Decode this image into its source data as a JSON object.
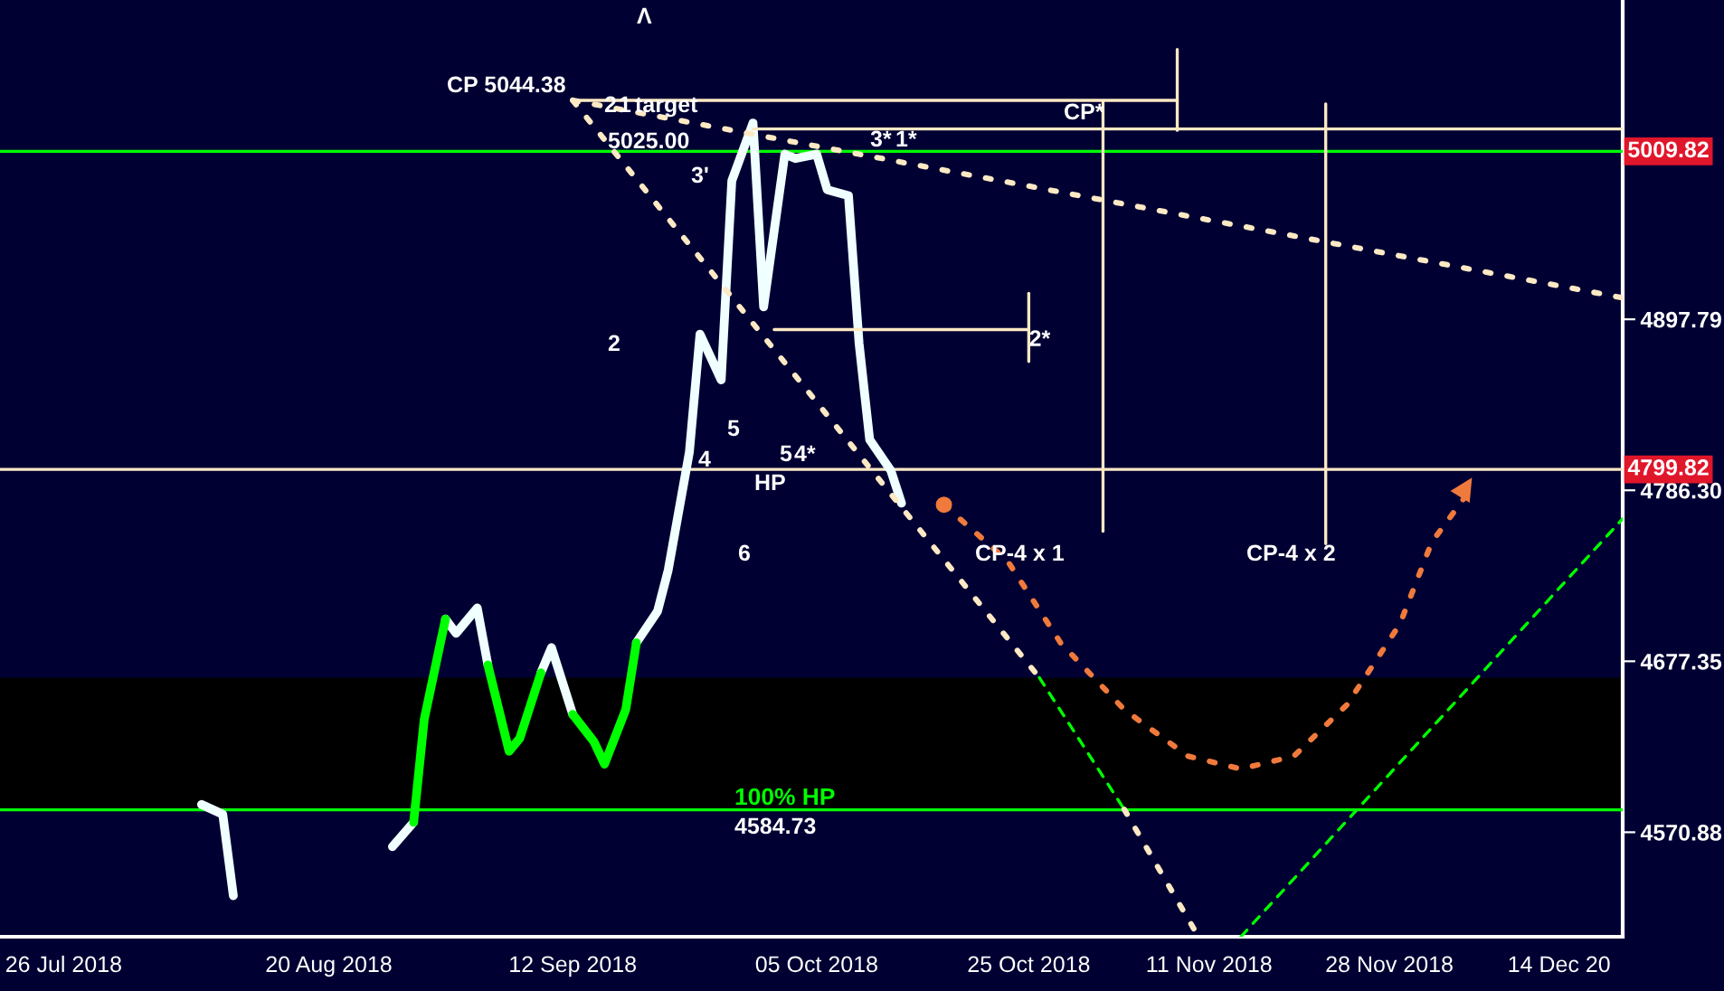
{
  "chart_data": {
    "type": "line",
    "log": "y",
    "grid": false,
    "legend": false,
    "xlim": [
      "2018-07-20",
      "2018-12-20"
    ],
    "xticks": [
      {
        "value": "2018-07-26",
        "label": "26 Jul 2018"
      },
      {
        "value": "2018-08-20",
        "label": "20 Aug 2018"
      },
      {
        "value": "2018-09-12",
        "label": "12 Sep 2018"
      },
      {
        "value": "2018-10-05",
        "label": "05 Oct 2018"
      },
      {
        "value": "2018-10-25",
        "label": "25 Oct 2018"
      },
      {
        "value": "2018-11-11",
        "label": "11 Nov 2018"
      },
      {
        "value": "2018-11-28",
        "label": "28 Nov 2018"
      },
      {
        "value": "2018-12-14",
        "label": "14 Dec 20"
      }
    ],
    "ylim": [
      4507,
      5113
    ],
    "yticks": [
      4570.88,
      4677.35,
      {
        "value": 4786.3,
        "label": "4786.30"
      },
      4897.79
    ],
    "series": [
      {
        "color": "#f0ffff",
        "line_style": "solid",
        "x": [
          "2018-08-08",
          "2018-08-10",
          "2018-08-11",
          "2018-08-13",
          "2018-08-15",
          "2018-08-17",
          "2018-08-18",
          "2018-08-20",
          "2018-08-22",
          "2018-08-23",
          "2018-08-25",
          "2018-08-26",
          "2018-08-28",
          "2018-08-29",
          "2018-08-31",
          "2018-09-01",
          "2018-09-03",
          "2018-09-04",
          "2018-09-06",
          "2018-09-07",
          "2018-09-09",
          "2018-09-10",
          "2018-09-12",
          "2018-09-14",
          "2018-09-15",
          "2018-09-17",
          "2018-09-18",
          "2018-09-20",
          "2018-09-21",
          "2018-09-23",
          "2018-09-24",
          "2018-09-26",
          "2018-09-27",
          "2018-09-29",
          "2018-09-30",
          "2018-10-02",
          "2018-10-03",
          "2018-10-05",
          "2018-10-06",
          "2018-10-08",
          "2018-10-09",
          "2018-10-10",
          "2018-10-12",
          "2018-10-13"
        ],
        "values": [
          4588,
          4582,
          4532,
          null,
          null,
          null,
          null,
          null,
          null,
          null,
          null,
          4562,
          4577,
          null,
          4704,
          4695,
          4711,
          4675,
          null,
          null,
          4670,
          4686,
          4644,
          null,
          null,
          null,
          4689,
          4709,
          4735,
          4811,
          4888,
          4858,
          4990,
          5029,
          4906,
          5008,
          5005,
          5008,
          4984,
          4980,
          4882,
          4819,
          4799,
          4778
        ]
      },
      {
        "color": "#00ff00",
        "line_style": "solid",
        "x": [
          "2018-08-28",
          "2018-08-29",
          "2018-08-31",
          "2018-09-01",
          "2018-09-03",
          "2018-09-04",
          "2018-09-06",
          "2018-09-07",
          "2018-09-09",
          "2018-09-10",
          "2018-09-12",
          "2018-09-14",
          "2018-09-15",
          "2018-09-17",
          "2018-09-18"
        ],
        "values": [
          4577,
          4641,
          4704,
          null,
          null,
          4675,
          4621,
          4629,
          4670,
          null,
          4644,
          4627,
          4613,
          4647,
          4689
        ]
      },
      {
        "color": "#fde9c4",
        "line_style": "dotted",
        "x": [
          "2018-09-12",
          "2018-12-20"
        ],
        "values": [
          5044.38,
          4912
        ]
      },
      {
        "color": "#fde9c4",
        "line_style": "dotted",
        "x": [
          "2018-09-12",
          "2018-10-26"
        ],
        "values": [
          5044.38,
          4667
        ]
      },
      {
        "color": "#00ff00",
        "line_style": "dashed",
        "x": [
          "2018-10-26",
          "2018-11-03"
        ],
        "values": [
          4667,
          4585
        ]
      },
      {
        "color": "#fde9c4",
        "line_style": "dotted",
        "x": [
          "2018-11-03",
          "2018-11-10"
        ],
        "values": [
          4585,
          4507
        ]
      },
      {
        "color": "#00ff00",
        "line_style": "dashed",
        "x": [
          "2018-11-14",
          "2018-12-20"
        ],
        "values": [
          4507,
          4768
        ]
      },
      {
        "color": "#fde9c4",
        "line_style": "solid",
        "x": [
          "2018-09-12",
          "2018-11-08"
        ],
        "values": [
          5044.38,
          5044.38
        ]
      },
      {
        "color": "#fde9c4",
        "line_style": "solid",
        "x": [
          "2018-11-08",
          "2018-11-08"
        ],
        "values": [
          5079,
          5024
        ]
      },
      {
        "color": "#fde9c4",
        "line_style": "solid",
        "x": [
          "2018-09-29",
          "2018-12-20"
        ],
        "values": [
          5025,
          5025
        ]
      },
      {
        "color": "#fde9c4",
        "line_style": "solid",
        "x": [
          "2018-10-01",
          "2018-10-25"
        ],
        "values": [
          4891,
          4891
        ]
      },
      {
        "color": "#fde9c4",
        "line_style": "solid",
        "x": [
          "2018-10-25",
          "2018-10-25"
        ],
        "values": [
          4915,
          4870
        ]
      },
      {
        "color": "#fde9c4",
        "line_style": "solid",
        "x": [
          "2018-11-01",
          "2018-11-01"
        ],
        "values": [
          5044,
          4760
        ]
      },
      {
        "color": "#fde9c4",
        "line_style": "solid",
        "x": [
          "2018-11-22",
          "2018-11-22"
        ],
        "values": [
          5042,
          4752
        ]
      },
      {
        "color": "#f07a3c",
        "line_style": "dotted",
        "x": [
          "2018-10-17",
          "2018-10-23",
          "2018-10-28",
          "2018-11-03",
          "2018-11-09",
          "2018-11-14",
          "2018-11-19",
          "2018-11-24",
          "2018-11-29",
          "2018-12-02",
          "2018-12-06"
        ],
        "values": [
          4777,
          4741,
          4689,
          4647,
          4618,
          4610,
          4618,
          4650,
          4701,
          4753,
          4790
        ]
      },
      {
        "type": "scatter",
        "color": "#f07a3c",
        "x": [
          "2018-10-17"
        ],
        "values": [
          4777
        ]
      }
    ],
    "bands": [
      {
        "axis": "y",
        "from": 4584.73,
        "to": 4667,
        "color": "#000000"
      }
    ],
    "ref_lines": [
      {
        "axis": "y",
        "value": 5009.82,
        "label": "5009.82",
        "color": "#00ff00"
      },
      {
        "axis": "y",
        "value": 4799.82,
        "label": "4799.82",
        "color": "#fde9c4"
      },
      {
        "axis": "y",
        "value": 4584.73,
        "label": "100% HP",
        "color": "#00ff00"
      }
    ],
    "annotations": [
      "CP 5044.38",
      "Λ",
      "2",
      "1",
      "target",
      "5025.00",
      "3'",
      "2",
      {
        "text": "2*",
        "x": "2018-10-25",
        "y": 4891
      },
      "3*",
      "1*",
      "CP*",
      "5",
      "4",
      "HP",
      "6",
      "5",
      "4*",
      "CP-4 x 1",
      "CP-4 x 2",
      "4584.73"
    ]
  }
}
